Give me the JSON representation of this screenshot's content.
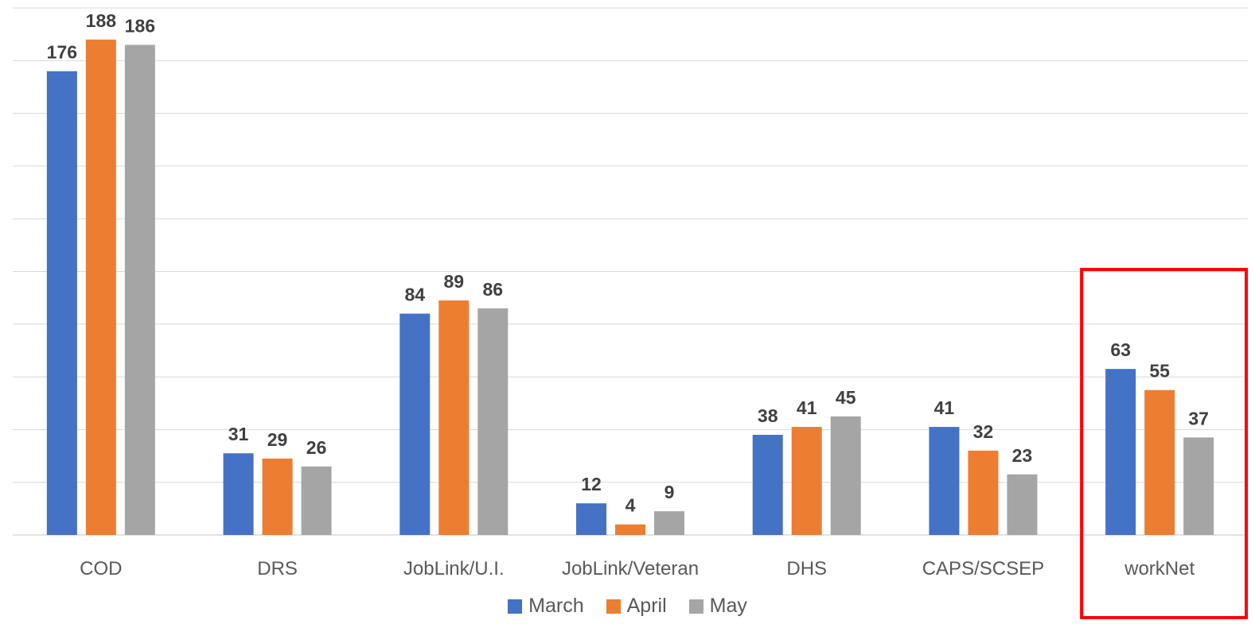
{
  "chart_data": {
    "type": "bar",
    "categories": [
      "COD",
      "DRS",
      "JobLink/U.I.",
      "JobLink/Veteran",
      "DHS",
      "CAPS/SCSEP",
      "workNet"
    ],
    "series": [
      {
        "name": "March",
        "color": "#4472C4",
        "values": [
          176,
          31,
          84,
          12,
          38,
          41,
          63
        ]
      },
      {
        "name": "April",
        "color": "#ED7D31",
        "values": [
          188,
          29,
          89,
          4,
          41,
          32,
          55
        ]
      },
      {
        "name": "May",
        "color": "#A5A5A5",
        "values": [
          186,
          26,
          86,
          9,
          45,
          23,
          37
        ]
      }
    ],
    "ylim": [
      0,
      200
    ],
    "grid": true,
    "legend_position": "bottom",
    "highlight": {
      "category": "workNet",
      "color": "#FF0000"
    }
  }
}
